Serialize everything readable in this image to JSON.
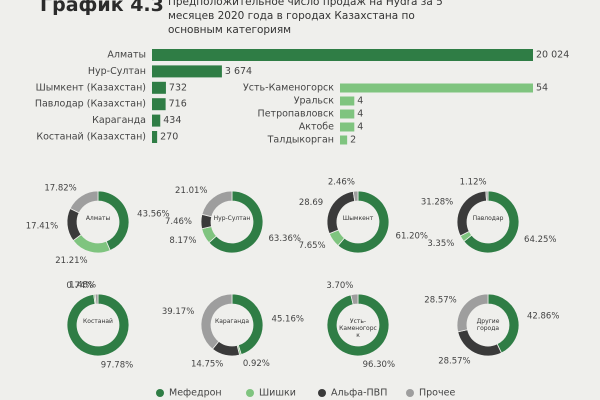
{
  "header": {
    "title": "График 4.3",
    "subtitle": "Предположительное число продаж на Hydra за 5 месяцев 2020 года в городах Казахстана по основным категориям"
  },
  "chart_data": [
    {
      "type": "bar",
      "categories": [
        "Алматы",
        "Нур-Султан",
        "Шымкент (Казахстан)",
        "Павлодар (Казахстан)",
        "Караганда",
        "Костанай (Казахстан)"
      ],
      "values": [
        20024,
        3674,
        732,
        716,
        434,
        270
      ],
      "value_labels": [
        "20 024",
        "3 674",
        "732",
        "716",
        "434",
        "270"
      ],
      "color": "#2f7d45"
    },
    {
      "type": "bar",
      "categories": [
        "Усть-Каменогорск",
        "Уральск",
        "Петропавловск",
        "Актобе",
        "Талдыкорган"
      ],
      "values": [
        54,
        4,
        4,
        4,
        2
      ],
      "color": "#7fc47f"
    },
    {
      "type": "donut",
      "categories": [
        "Алматы",
        "Нур-Султан",
        "Шымкент",
        "Павлодар",
        "Костанай",
        "Караганда",
        "Усть-Каменогорск",
        "Другие города"
      ],
      "series": [
        {
          "name": "Мефедрон",
          "color": "#2f7d45",
          "values": [
            43.56,
            63.36,
            61.2,
            64.25,
            97.78,
            45.16,
            96.3,
            42.86
          ],
          "value_labels": [
            "43.56%",
            "63.36%",
            "61.20%",
            "64.25%",
            "97.78%",
            "45.16%",
            "96.30%",
            "42.86%"
          ]
        },
        {
          "name": "Шишки",
          "color": "#7fc47f",
          "values": [
            21.21,
            8.17,
            7.65,
            3.35,
            0.74,
            0.92,
            null,
            null
          ],
          "value_labels": [
            "21.21%",
            "8.17%",
            "7.65%",
            "3.35%",
            "0.74%",
            "0.92%",
            null,
            null
          ]
        },
        {
          "name": "Альфа-ПВП",
          "color": "#3a3a3a",
          "values": [
            17.41,
            7.46,
            28.69,
            31.28,
            null,
            14.75,
            null,
            28.57
          ],
          "value_labels": [
            "17.41%",
            "7.46%",
            "28.69",
            "31.28%",
            null,
            "14.75%",
            null,
            "28.57%"
          ]
        },
        {
          "name": "Прочее",
          "color": "#9e9e9e",
          "values": [
            17.82,
            21.01,
            2.46,
            1.12,
            1.48,
            39.17,
            3.7,
            28.57
          ],
          "value_labels": [
            "17.82%",
            "21.01%",
            "2.46%",
            "1.12%",
            "1.48%",
            "39.17%",
            "3.70%",
            "28.57%"
          ]
        }
      ]
    }
  ]
}
